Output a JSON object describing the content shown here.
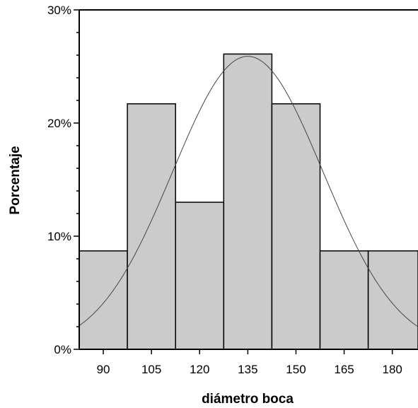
{
  "chart_data": {
    "type": "histogram",
    "xlabel": "diámetro boca",
    "ylabel": "Porcentaje",
    "xlim": [
      82.5,
      188
    ],
    "ylim": [
      0,
      30
    ],
    "y_tick_labels": [
      {
        "value": 0,
        "label": "0%"
      },
      {
        "value": 10,
        "label": "10%"
      },
      {
        "value": 20,
        "label": "20%"
      },
      {
        "value": 30,
        "label": "30%"
      }
    ],
    "x_tick_labels": [
      {
        "value": 90,
        "label": "90"
      },
      {
        "value": 105,
        "label": "105"
      },
      {
        "value": 120,
        "label": "120"
      },
      {
        "value": 135,
        "label": "135"
      },
      {
        "value": 150,
        "label": "150"
      },
      {
        "value": 165,
        "label": "165"
      },
      {
        "value": 180,
        "label": "180"
      }
    ],
    "bins": [
      {
        "x0": 82.5,
        "x1": 97.5,
        "value": 8.7
      },
      {
        "x0": 97.5,
        "x1": 112.5,
        "value": 21.7
      },
      {
        "x0": 112.5,
        "x1": 127.5,
        "value": 13.0
      },
      {
        "x0": 127.5,
        "x1": 142.5,
        "value": 26.1
      },
      {
        "x0": 142.5,
        "x1": 157.5,
        "value": 21.7
      },
      {
        "x0": 157.5,
        "x1": 172.5,
        "value": 8.7
      },
      {
        "x0": 172.5,
        "x1": 188,
        "value": 8.7
      }
    ],
    "normal_curve": {
      "mean": 135,
      "sd": 23.4,
      "peak": 25.9
    },
    "colors": {
      "bar_fill": "#cbcbcb",
      "bar_stroke": "#000000",
      "curve": "#444444",
      "axis": "#000000"
    }
  }
}
